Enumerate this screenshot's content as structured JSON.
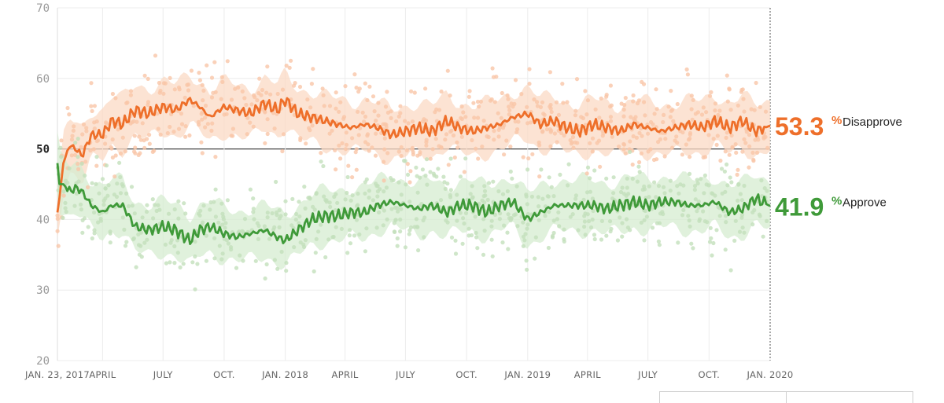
{
  "chart_data": {
    "type": "line",
    "ylim": [
      20,
      70
    ],
    "yticks": [
      20,
      30,
      40,
      50,
      60,
      70
    ],
    "highlight_y": 50,
    "xlim": [
      "2017-01-23",
      "2020-01-01"
    ],
    "xticks": [
      {
        "date": "2017-01-23",
        "label": "JAN. 23, 2017"
      },
      {
        "date": "2017-04-01",
        "label": "APRIL"
      },
      {
        "date": "2017-07-01",
        "label": "JULY"
      },
      {
        "date": "2017-10-01",
        "label": "OCT."
      },
      {
        "date": "2018-01-01",
        "label": "JAN. 2018"
      },
      {
        "date": "2018-04-01",
        "label": "APRIL"
      },
      {
        "date": "2018-07-01",
        "label": "JULY"
      },
      {
        "date": "2018-10-01",
        "label": "OCT."
      },
      {
        "date": "2019-01-01",
        "label": "JAN. 2019"
      },
      {
        "date": "2019-04-01",
        "label": "APRIL"
      },
      {
        "date": "2019-07-01",
        "label": "JULY"
      },
      {
        "date": "2019-10-01",
        "label": "OCT."
      },
      {
        "date": "2020-01-01",
        "label": "JAN. 2020"
      }
    ],
    "grid": true,
    "series": [
      {
        "name": "Disapprove",
        "current_value": "53.3",
        "unit": "%",
        "color": "#ee6f2a",
        "band_color": "#fbd9c4",
        "dot_color": "#f9c6a8",
        "x": [
          "2017-01-23",
          "2017-01-26",
          "2017-02-01",
          "2017-02-10",
          "2017-02-20",
          "2017-03-01",
          "2017-03-15",
          "2017-04-01",
          "2017-04-15",
          "2017-05-01",
          "2017-05-20",
          "2017-06-10",
          "2017-07-01",
          "2017-07-20",
          "2017-08-10",
          "2017-08-25",
          "2017-09-10",
          "2017-10-01",
          "2017-10-20",
          "2017-11-10",
          "2017-12-01",
          "2017-12-20",
          "2018-01-01",
          "2018-01-20",
          "2018-02-10",
          "2018-03-01",
          "2018-03-20",
          "2018-04-10",
          "2018-05-01",
          "2018-05-20",
          "2018-06-10",
          "2018-07-01",
          "2018-07-20",
          "2018-08-10",
          "2018-09-01",
          "2018-09-20",
          "2018-10-10",
          "2018-11-01",
          "2018-11-20",
          "2018-12-10",
          "2019-01-01",
          "2019-01-20",
          "2019-02-10",
          "2019-03-01",
          "2019-03-20",
          "2019-04-10",
          "2019-05-01",
          "2019-05-20",
          "2019-06-10",
          "2019-07-01",
          "2019-07-20",
          "2019-08-10",
          "2019-09-01",
          "2019-09-20",
          "2019-10-10",
          "2019-11-01",
          "2019-11-20",
          "2019-12-10",
          "2020-01-01"
        ],
        "values": [
          41,
          43,
          48,
          50.5,
          50,
          49,
          52,
          52,
          54,
          53.5,
          55.5,
          55,
          56,
          55.5,
          57,
          56,
          54.5,
          56,
          55.5,
          55,
          56.5,
          55.5,
          57,
          55,
          54.5,
          54,
          53.5,
          53,
          53.5,
          53,
          52,
          52.5,
          53,
          52.5,
          54,
          53,
          52.5,
          53,
          53.5,
          54.5,
          55,
          53.5,
          54,
          53,
          52.5,
          53.5,
          53,
          52.5,
          53.5,
          53,
          52.5,
          53,
          53.5,
          53,
          54,
          53,
          54,
          52.5,
          53.3
        ]
      },
      {
        "name": "Approve",
        "current_value": "41.9",
        "unit": "%",
        "color": "#3f9a39",
        "band_color": "#d6ecd0",
        "dot_color": "#c3e0bb",
        "x": [
          "2017-01-23",
          "2017-01-26",
          "2017-02-01",
          "2017-02-10",
          "2017-02-20",
          "2017-03-01",
          "2017-03-15",
          "2017-04-01",
          "2017-04-15",
          "2017-05-01",
          "2017-05-20",
          "2017-06-10",
          "2017-07-01",
          "2017-07-20",
          "2017-08-10",
          "2017-08-25",
          "2017-09-10",
          "2017-10-01",
          "2017-10-20",
          "2017-11-10",
          "2017-12-01",
          "2017-12-20",
          "2018-01-01",
          "2018-01-20",
          "2018-02-10",
          "2018-03-01",
          "2018-03-20",
          "2018-04-10",
          "2018-05-01",
          "2018-05-20",
          "2018-06-10",
          "2018-07-01",
          "2018-07-20",
          "2018-08-10",
          "2018-09-01",
          "2018-09-20",
          "2018-10-10",
          "2018-11-01",
          "2018-11-20",
          "2018-12-10",
          "2019-01-01",
          "2019-01-20",
          "2019-02-10",
          "2019-03-01",
          "2019-03-20",
          "2019-04-10",
          "2019-05-01",
          "2019-05-20",
          "2019-06-10",
          "2019-07-01",
          "2019-07-20",
          "2019-08-10",
          "2019-09-01",
          "2019-09-20",
          "2019-10-10",
          "2019-11-01",
          "2019-11-20",
          "2019-12-10",
          "2020-01-01"
        ],
        "values": [
          48,
          45,
          45,
          44,
          44.5,
          44,
          42,
          41,
          42,
          42,
          39,
          38.5,
          39,
          38.5,
          37,
          38.5,
          39,
          38,
          37.5,
          38,
          38.5,
          37.5,
          37,
          38.5,
          40,
          40.5,
          40.5,
          41,
          41,
          42,
          42.5,
          42,
          41.5,
          42,
          41,
          42,
          42,
          41,
          42,
          42.5,
          40,
          41,
          42,
          42,
          42,
          42,
          41.5,
          42,
          42.5,
          42,
          42.5,
          42.5,
          42,
          42,
          42.5,
          41,
          41.5,
          43,
          41.9
        ]
      }
    ]
  }
}
